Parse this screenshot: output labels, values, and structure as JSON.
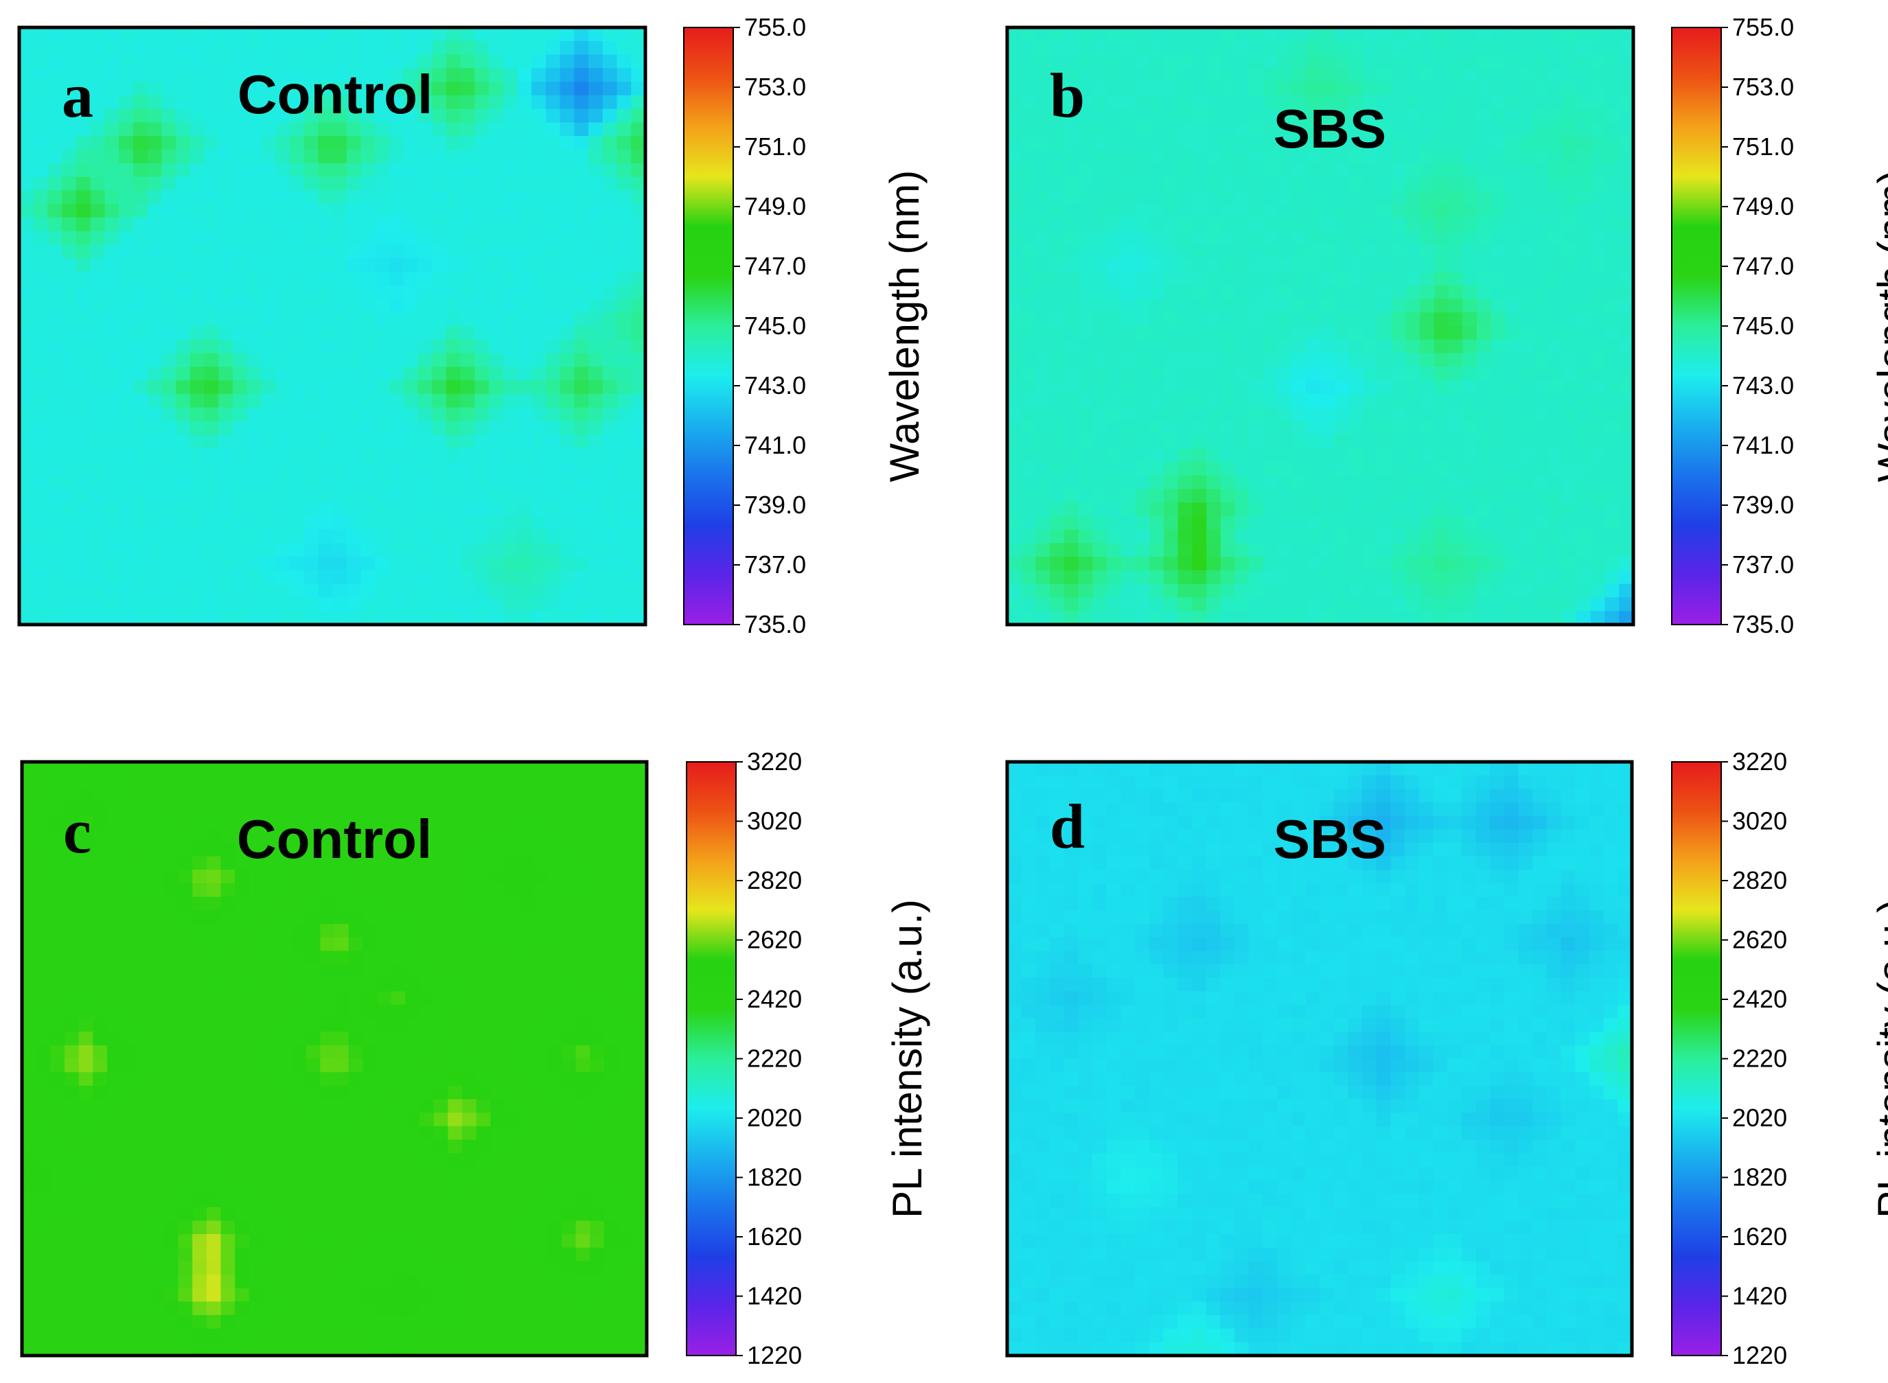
{
  "chart_data": [
    {
      "type": "heatmap",
      "panel_letter": "a",
      "title": "Control",
      "quantity": "wavelength",
      "colorbar_label": "Wavelength (nm)",
      "zlim": [
        735.0,
        755.0
      ],
      "colorbar_ticks": [
        "735.0",
        "737.0",
        "739.0",
        "741.0",
        "743.0",
        "745.0",
        "747.0",
        "749.0",
        "751.0",
        "753.0",
        "755.0"
      ],
      "grid_rows": 11,
      "grid_cols": 11,
      "base_value": 743.6,
      "features": [
        {
          "row": 1,
          "col": 9,
          "value": 740.4
        },
        {
          "row": 1,
          "col": 7,
          "value": 746.3
        },
        {
          "row": 2,
          "col": 2,
          "value": 746.5
        },
        {
          "row": 2,
          "col": 5,
          "value": 746.3
        },
        {
          "row": 2,
          "col": 10,
          "value": 746.2
        },
        {
          "row": 3,
          "col": 1,
          "value": 746.5
        },
        {
          "row": 6,
          "col": 3,
          "value": 746.5
        },
        {
          "row": 6,
          "col": 7,
          "value": 746.5
        },
        {
          "row": 6,
          "col": 9,
          "value": 746.0
        },
        {
          "row": 5,
          "col": 10,
          "value": 745.5
        },
        {
          "row": 4,
          "col": 6,
          "value": 743.0
        },
        {
          "row": 9,
          "col": 5,
          "value": 742.8
        },
        {
          "row": 9,
          "col": 8,
          "value": 744.6
        }
      ]
    },
    {
      "type": "heatmap",
      "panel_letter": "b",
      "title": "SBS",
      "quantity": "wavelength",
      "colorbar_label": "Wavelength (nm)",
      "zlim": [
        735.0,
        755.0
      ],
      "colorbar_ticks": [
        "735.0",
        "737.0",
        "739.0",
        "741.0",
        "743.0",
        "745.0",
        "747.0",
        "749.0",
        "751.0",
        "753.0",
        "755.0"
      ],
      "grid_rows": 11,
      "grid_cols": 11,
      "base_value": 744.1,
      "features": [
        {
          "row": 1,
          "col": 5,
          "value": 745.0
        },
        {
          "row": 3,
          "col": 7,
          "value": 745.0
        },
        {
          "row": 5,
          "col": 7,
          "value": 746.4
        },
        {
          "row": 6,
          "col": 5,
          "value": 743.1
        },
        {
          "row": 9,
          "col": 1,
          "value": 746.3
        },
        {
          "row": 9,
          "col": 3,
          "value": 746.5
        },
        {
          "row": 8,
          "col": 3,
          "value": 746.2
        },
        {
          "row": 9,
          "col": 7,
          "value": 745.1
        },
        {
          "row": 10,
          "col": 10,
          "value": 740.6
        },
        {
          "row": 2,
          "col": 9,
          "value": 744.6
        },
        {
          "row": 4,
          "col": 2,
          "value": 743.6
        }
      ]
    },
    {
      "type": "heatmap",
      "panel_letter": "c",
      "title": "Control",
      "quantity": "pl_intensity",
      "colorbar_label": "PL intensity (a.u.)",
      "zlim": [
        1220,
        3220
      ],
      "colorbar_ticks": [
        "1220",
        "1420",
        "1620",
        "1820",
        "2020",
        "2220",
        "2420",
        "2620",
        "2820",
        "3020",
        "3220"
      ],
      "grid_rows": 11,
      "grid_cols": 11,
      "base_value": 2440,
      "features": [
        {
          "row": 1,
          "col": 1,
          "value": 2560
        },
        {
          "row": 2,
          "col": 3,
          "value": 2640
        },
        {
          "row": 3,
          "col": 5,
          "value": 2620
        },
        {
          "row": 5,
          "col": 1,
          "value": 2660
        },
        {
          "row": 5,
          "col": 5,
          "value": 2640
        },
        {
          "row": 4,
          "col": 6,
          "value": 2580
        },
        {
          "row": 6,
          "col": 7,
          "value": 2660
        },
        {
          "row": 5,
          "col": 9,
          "value": 2600
        },
        {
          "row": 7,
          "col": 0,
          "value": 2560
        },
        {
          "row": 8,
          "col": 3,
          "value": 2660
        },
        {
          "row": 9,
          "col": 3,
          "value": 2680
        },
        {
          "row": 8,
          "col": 9,
          "value": 2620
        },
        {
          "row": 9,
          "col": 6,
          "value": 2560
        },
        {
          "row": 2,
          "col": 8,
          "value": 2560
        }
      ]
    },
    {
      "type": "heatmap",
      "panel_letter": "d",
      "title": "SBS",
      "quantity": "pl_intensity",
      "colorbar_label": "PL intensity (a.u.)",
      "zlim": [
        1220,
        3220
      ],
      "colorbar_ticks": [
        "1220",
        "1420",
        "1620",
        "1820",
        "2020",
        "2220",
        "2420",
        "2620",
        "2820",
        "3020",
        "3220"
      ],
      "grid_rows": 11,
      "grid_cols": 11,
      "base_value": 2010,
      "features": [
        {
          "row": 1,
          "col": 6,
          "value": 1880
        },
        {
          "row": 1,
          "col": 8,
          "value": 1900
        },
        {
          "row": 3,
          "col": 3,
          "value": 1940
        },
        {
          "row": 3,
          "col": 9,
          "value": 1940
        },
        {
          "row": 4,
          "col": 1,
          "value": 1960
        },
        {
          "row": 5,
          "col": 6,
          "value": 1920
        },
        {
          "row": 6,
          "col": 8,
          "value": 1950
        },
        {
          "row": 5,
          "col": 10,
          "value": 2180
        },
        {
          "row": 9,
          "col": 4,
          "value": 1950
        },
        {
          "row": 9,
          "col": 7,
          "value": 2100
        },
        {
          "row": 10,
          "col": 3,
          "value": 2100
        },
        {
          "row": 7,
          "col": 2,
          "value": 2060
        }
      ]
    }
  ],
  "colors": {
    "colormap": [
      "#9b1fe6",
      "#5a25e8",
      "#1f3fe6",
      "#1a73ec",
      "#19b0ee",
      "#1deded",
      "#2bee9a",
      "#2ad414",
      "#26d211",
      "#e6e61c",
      "#f4a11a",
      "#ed5214",
      "#e61c1c"
    ],
    "frame": "#000000",
    "background": "#ffffff"
  }
}
